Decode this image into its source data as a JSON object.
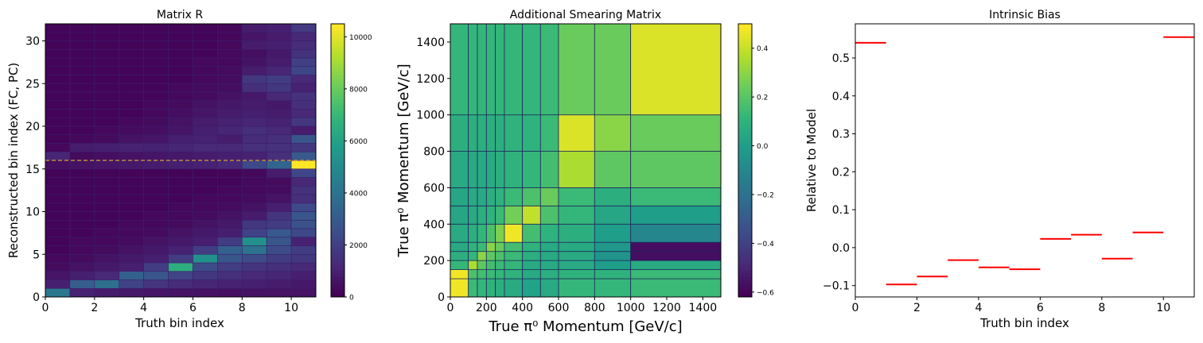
{
  "chart_data": [
    {
      "type": "heatmap",
      "title": "Matrix R",
      "xlabel": "Truth bin index",
      "ylabel": "Reconstructed bin index (FC, PC)",
      "xlim": [
        0,
        11
      ],
      "ylim": [
        0,
        32
      ],
      "x_ticks": [
        "0",
        "2",
        "4",
        "6",
        "8",
        "10"
      ],
      "y_ticks": [
        "0",
        "5",
        "10",
        "15",
        "20",
        "25",
        "30"
      ],
      "colormap": "viridis",
      "colorbar": {
        "min": 0,
        "max": 10500,
        "ticks": [
          "0",
          "2000",
          "4000",
          "6000",
          "8000",
          "10000"
        ]
      },
      "divider_y": 16,
      "divider_color": "#c08a3e",
      "cells_x_edges": [
        0,
        1,
        2,
        3,
        4,
        5,
        6,
        7,
        8,
        9,
        10,
        11
      ],
      "cells_y_edges": "integer bins 0..32",
      "values_rows_bottom_to_top": [
        [
          4200,
          1000,
          800,
          700,
          600,
          550,
          500,
          450,
          500,
          500,
          550
        ],
        [
          900,
          3100,
          3800,
          2100,
          1600,
          1300,
          1100,
          1000,
          900,
          800,
          700
        ],
        [
          600,
          900,
          1200,
          3200,
          2800,
          2100,
          1700,
          1400,
          1200,
          1100,
          900
        ],
        [
          300,
          500,
          700,
          900,
          1900,
          6600,
          2400,
          1900,
          1600,
          1400,
          1200
        ],
        [
          200,
          300,
          500,
          700,
          900,
          1900,
          5300,
          2800,
          2400,
          1900,
          1700
        ],
        [
          100,
          200,
          300,
          500,
          700,
          1000,
          1900,
          3200,
          4000,
          2400,
          1900
        ],
        [
          100,
          200,
          200,
          300,
          500,
          700,
          900,
          1900,
          5300,
          2800,
          1000
        ],
        [
          100,
          100,
          200,
          200,
          300,
          500,
          700,
          900,
          2100,
          2900,
          2300
        ],
        [
          100,
          100,
          100,
          200,
          200,
          300,
          500,
          700,
          1700,
          1900,
          2600
        ],
        [
          100,
          100,
          100,
          100,
          200,
          200,
          300,
          500,
          800,
          1600,
          2800
        ],
        [
          100,
          100,
          100,
          100,
          100,
          200,
          200,
          300,
          500,
          900,
          2300
        ],
        [
          100,
          100,
          100,
          100,
          100,
          100,
          200,
          200,
          300,
          500,
          1400
        ],
        [
          100,
          100,
          100,
          100,
          100,
          100,
          100,
          200,
          200,
          300,
          1500
        ],
        [
          100,
          100,
          100,
          100,
          100,
          100,
          100,
          100,
          200,
          300,
          1200
        ],
        [
          100,
          100,
          100,
          100,
          100,
          100,
          100,
          100,
          200,
          800,
          2200
        ],
        [
          400,
          500,
          600,
          700,
          800,
          900,
          1000,
          1200,
          2300,
          3400,
          10500
        ],
        [
          1100,
          300,
          400,
          500,
          600,
          700,
          800,
          900,
          1000,
          1400,
          2900
        ],
        [
          200,
          800,
          900,
          1000,
          1000,
          1100,
          1200,
          1200,
          1400,
          1500,
          1700
        ],
        [
          100,
          200,
          300,
          500,
          600,
          900,
          1000,
          800,
          1300,
          1400,
          2800
        ],
        [
          100,
          100,
          200,
          300,
          400,
          600,
          900,
          1100,
          1400,
          1200,
          800
        ],
        [
          100,
          100,
          100,
          200,
          300,
          500,
          800,
          1000,
          1100,
          1000,
          1700
        ],
        [
          100,
          100,
          100,
          100,
          200,
          400,
          600,
          800,
          900,
          800,
          1200
        ],
        [
          100,
          100,
          100,
          100,
          200,
          300,
          500,
          700,
          800,
          700,
          1400
        ],
        [
          100,
          100,
          100,
          100,
          100,
          200,
          300,
          500,
          700,
          1200,
          1500
        ],
        [
          100,
          100,
          100,
          100,
          100,
          200,
          300,
          400,
          1400,
          1700,
          1000
        ],
        [
          100,
          100,
          100,
          100,
          100,
          100,
          200,
          300,
          1700,
          1900,
          1200
        ],
        [
          100,
          100,
          100,
          100,
          100,
          100,
          200,
          300,
          800,
          1100,
          2200
        ],
        [
          100,
          100,
          100,
          100,
          100,
          100,
          200,
          200,
          500,
          800,
          2000
        ],
        [
          100,
          100,
          100,
          100,
          100,
          100,
          100,
          200,
          400,
          700,
          1500
        ],
        [
          100,
          100,
          100,
          100,
          100,
          100,
          100,
          200,
          800,
          900,
          1300
        ],
        [
          100,
          100,
          100,
          100,
          100,
          100,
          100,
          200,
          600,
          800,
          1200
        ],
        [
          100,
          100,
          100,
          100,
          100,
          100,
          100,
          200,
          800,
          900,
          1800
        ]
      ]
    },
    {
      "type": "heatmap",
      "title": "Additional Smearing Matrix",
      "xlabel": "True π⁰ Momentum [GeV/c]",
      "ylabel": "True π⁰ Momentum [GeV/c]",
      "xlim": [
        0,
        1500
      ],
      "ylim": [
        0,
        1500
      ],
      "x_ticks": [
        "0",
        "200",
        "400",
        "600",
        "800",
        "1000",
        "1200",
        "1400"
      ],
      "y_ticks": [
        "0",
        "200",
        "400",
        "600",
        "800",
        "1000",
        "1200",
        "1400"
      ],
      "colormap": "viridis",
      "colorbar": {
        "min": -0.62,
        "max": 0.5,
        "ticks": [
          "−0.6",
          "−0.4",
          "−0.2",
          "0.0",
          "0.2",
          "0.4"
        ]
      },
      "bin_edges": [
        0,
        100,
        150,
        200,
        250,
        300,
        400,
        500,
        600,
        800,
        1000,
        1500
      ],
      "values_rows_bottom_to_top": [
        [
          0.48,
          0.14,
          0.12,
          0.1,
          0.08,
          0.06,
          0.02,
          0.06,
          0.12,
          0.12,
          0.14
        ],
        [
          0.48,
          0.18,
          0.16,
          0.14,
          0.12,
          0.1,
          0.06,
          0.08,
          0.1,
          0.1,
          0.14
        ],
        [
          0.12,
          0.36,
          0.22,
          0.16,
          0.14,
          0.12,
          0.06,
          0.06,
          0.06,
          0.0,
          0.06
        ],
        [
          0.08,
          0.12,
          0.3,
          0.22,
          0.18,
          0.14,
          0.08,
          0.06,
          0.06,
          -0.04,
          -0.58
        ],
        [
          0.06,
          0.1,
          0.14,
          0.3,
          0.24,
          0.16,
          0.1,
          0.06,
          0.06,
          -0.02,
          -0.58
        ],
        [
          0.06,
          0.08,
          0.12,
          0.18,
          0.28,
          0.48,
          0.16,
          0.1,
          0.08,
          0.0,
          -0.1
        ],
        [
          0.04,
          0.06,
          0.08,
          0.1,
          0.14,
          0.26,
          0.4,
          0.18,
          0.12,
          0.04,
          0.0
        ],
        [
          0.04,
          0.06,
          0.06,
          0.08,
          0.1,
          0.14,
          0.18,
          0.24,
          0.14,
          0.08,
          0.14
        ],
        [
          0.06,
          0.06,
          0.06,
          0.06,
          0.08,
          0.1,
          0.12,
          0.16,
          0.36,
          0.22,
          0.22
        ],
        [
          0.08,
          0.08,
          0.08,
          0.08,
          0.08,
          0.1,
          0.1,
          0.14,
          0.44,
          0.3,
          0.24
        ],
        [
          0.12,
          0.12,
          0.12,
          0.12,
          0.12,
          0.12,
          0.12,
          0.14,
          0.24,
          0.24,
          0.44
        ]
      ]
    },
    {
      "type": "step",
      "title": "Intrinsic Bias",
      "xlabel": "Truth bin index",
      "ylabel": "Relative to Model",
      "xlim": [
        0,
        11
      ],
      "ylim": [
        -0.13,
        0.59
      ],
      "x_ticks": [
        "0",
        "2",
        "4",
        "6",
        "8",
        "10"
      ],
      "y_ticks": [
        "−0.1",
        "0.0",
        "0.1",
        "0.2",
        "0.3",
        "0.4",
        "0.5"
      ],
      "line_color": "#ff0000",
      "bins": [
        0,
        1,
        2,
        3,
        4,
        5,
        6,
        7,
        8,
        9,
        10
      ],
      "values": [
        0.54,
        -0.097,
        -0.076,
        -0.033,
        -0.052,
        -0.057,
        0.023,
        0.034,
        -0.029,
        0.04,
        0.555
      ]
    }
  ]
}
